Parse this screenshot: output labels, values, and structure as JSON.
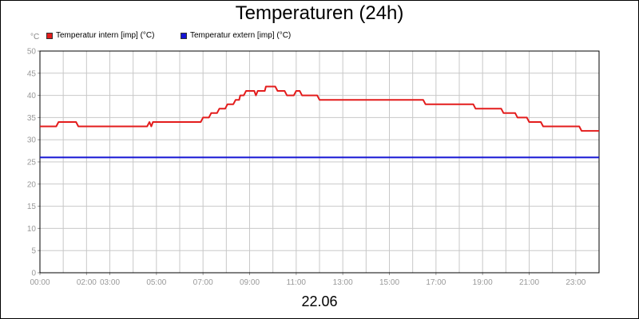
{
  "title": "Temperaturen (24h)",
  "subtitle": "22.06",
  "unit_label": "°C",
  "legend": [
    {
      "label": "Temperatur intern [imp] (°C)",
      "color": "#e31c1c"
    },
    {
      "label": "Temperatur extern [imp] (°C)",
      "color": "#1414d4"
    }
  ],
  "chart_data": {
    "type": "line",
    "title": "Temperaturen (24h)",
    "subtitle": "22.06",
    "ylabel": "°C",
    "ylim": [
      0,
      50
    ],
    "yticks": [
      "0",
      "5",
      "10",
      "15",
      "20",
      "25",
      "30",
      "35",
      "40",
      "45",
      "50"
    ],
    "xlim": [
      0,
      24
    ],
    "xticks": [
      {
        "x": 0,
        "label": "00:00"
      },
      {
        "x": 2,
        "label": "02:00"
      },
      {
        "x": 3,
        "label": "03:00"
      },
      {
        "x": 5,
        "label": "05:00"
      },
      {
        "x": 7,
        "label": "07:00"
      },
      {
        "x": 9,
        "label": "09:00"
      },
      {
        "x": 11,
        "label": "11:00"
      },
      {
        "x": 13,
        "label": "13:00"
      },
      {
        "x": 15,
        "label": "15:00"
      },
      {
        "x": 17,
        "label": "17:00"
      },
      {
        "x": 19,
        "label": "19:00"
      },
      {
        "x": 21,
        "label": "21:00"
      },
      {
        "x": 23,
        "label": "23:00"
      }
    ],
    "grid": true,
    "legend_position": "top-left",
    "series": [
      {
        "name": "Temperatur intern [imp] (°C)",
        "color": "#e31c1c",
        "points": [
          [
            0,
            33
          ],
          [
            0.7,
            33
          ],
          [
            0.8,
            34
          ],
          [
            1.55,
            34
          ],
          [
            1.65,
            33
          ],
          [
            4.6,
            33
          ],
          [
            4.7,
            34
          ],
          [
            4.78,
            33
          ],
          [
            4.85,
            34
          ],
          [
            6.9,
            34
          ],
          [
            7.0,
            35
          ],
          [
            7.25,
            35
          ],
          [
            7.35,
            36
          ],
          [
            7.6,
            36
          ],
          [
            7.7,
            37
          ],
          [
            7.95,
            37
          ],
          [
            8.05,
            38
          ],
          [
            8.3,
            38
          ],
          [
            8.4,
            39
          ],
          [
            8.55,
            39
          ],
          [
            8.6,
            40
          ],
          [
            8.75,
            40
          ],
          [
            8.85,
            41
          ],
          [
            9.2,
            41
          ],
          [
            9.27,
            40
          ],
          [
            9.35,
            41
          ],
          [
            9.65,
            41
          ],
          [
            9.7,
            42
          ],
          [
            10.1,
            42
          ],
          [
            10.2,
            41
          ],
          [
            10.5,
            41
          ],
          [
            10.6,
            40
          ],
          [
            10.9,
            40
          ],
          [
            11.0,
            41
          ],
          [
            11.15,
            41
          ],
          [
            11.25,
            40
          ],
          [
            11.9,
            40
          ],
          [
            12.0,
            39
          ],
          [
            16.45,
            39
          ],
          [
            16.55,
            38
          ],
          [
            18.6,
            38
          ],
          [
            18.7,
            37
          ],
          [
            19.8,
            37
          ],
          [
            19.9,
            36
          ],
          [
            20.4,
            36
          ],
          [
            20.5,
            35
          ],
          [
            20.9,
            35
          ],
          [
            21.0,
            34
          ],
          [
            21.5,
            34
          ],
          [
            21.6,
            33
          ],
          [
            23.15,
            33
          ],
          [
            23.25,
            32
          ],
          [
            24,
            32
          ]
        ]
      },
      {
        "name": "Temperatur extern [imp] (°C)",
        "color": "#1414d4",
        "points": [
          [
            0,
            26
          ],
          [
            24,
            26
          ]
        ]
      }
    ]
  }
}
